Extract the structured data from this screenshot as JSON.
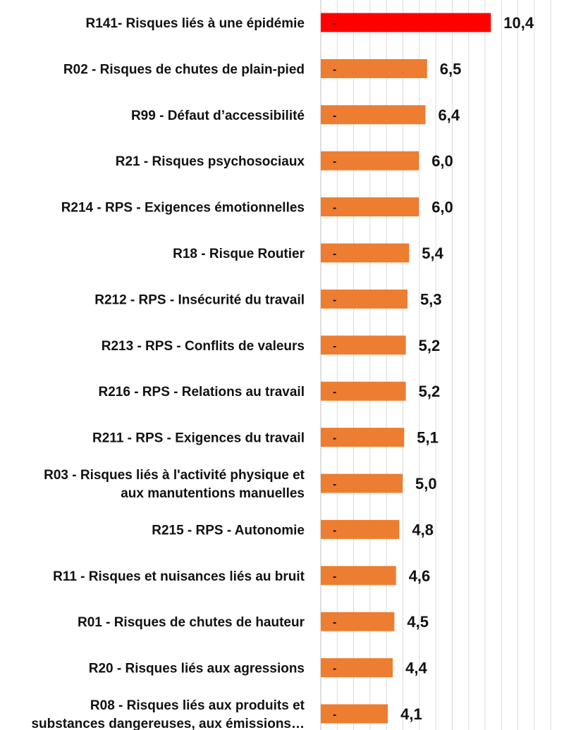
{
  "chart_data": {
    "type": "bar",
    "orientation": "horizontal",
    "categories": [
      "R141- Risques liés à une épidémie",
      "R02 - Risques de chutes de plain-pied",
      "R99 - Défaut d’accessibilité",
      "R21 - Risques psychosociaux",
      "R214 - RPS - Exigences émotionnelles",
      "R18 - Risque Routier",
      "R212 - RPS - Insécurité du travail",
      "R213 - RPS - Conflits de valeurs",
      "R216 - RPS - Relations au travail",
      "R211 - RPS - Exigences du travail",
      "R03 - Risques liés à l'activité physique et\naux manutentions manuelles",
      "R215 - RPS - Autonomie",
      "R11 - Risques et nuisances liés au bruit",
      "R01 - Risques de chutes de hauteur",
      "R20 - Risques liés aux agressions",
      "R08 - Risques liés aux produits et\nsubstances dangereuses, aux émissions…"
    ],
    "values": [
      10.4,
      6.5,
      6.4,
      6.0,
      6.0,
      5.4,
      5.3,
      5.2,
      5.2,
      5.1,
      5.0,
      4.8,
      4.6,
      4.5,
      4.4,
      4.1
    ],
    "value_labels": [
      "10,4",
      "6,5",
      "6,4",
      "6,0",
      "6,0",
      "5,4",
      "5,3",
      "5,2",
      "5,2",
      "5,1",
      "5,0",
      "4,8",
      "4,6",
      "4,5",
      "4,4",
      "4,1"
    ],
    "bar_marker": "-",
    "colors": {
      "highlight": "#ff0000",
      "bar": "#ed7d31",
      "grid": "#d9d9d9",
      "text": "#111111"
    },
    "highlight_index": 0,
    "xlim": [
      0,
      15
    ],
    "grid": true,
    "title": "",
    "xlabel": "",
    "ylabel": ""
  }
}
